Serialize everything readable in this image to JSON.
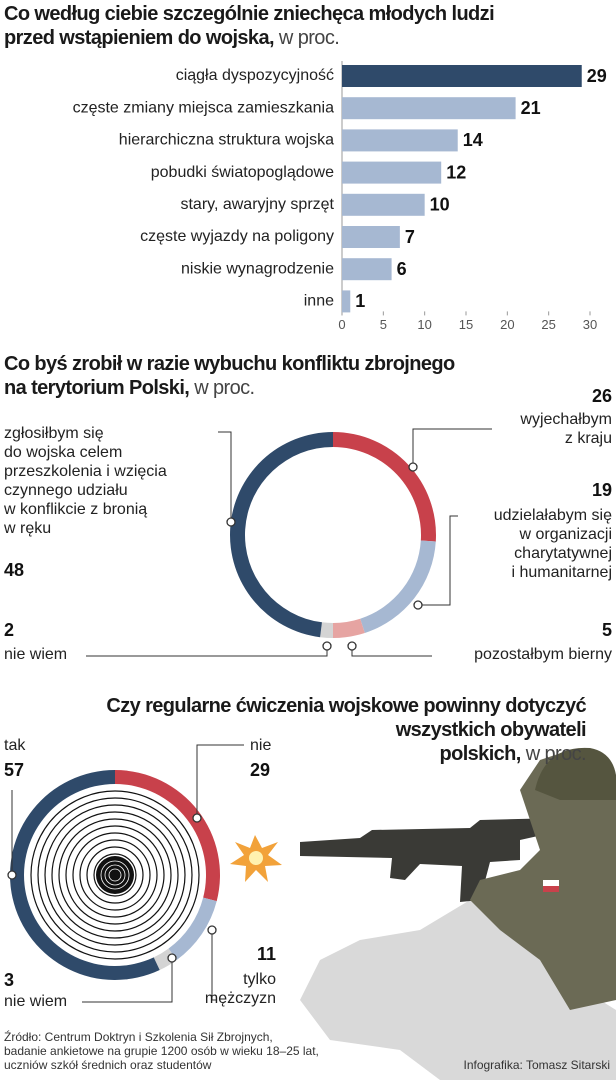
{
  "chart_data": [
    {
      "type": "bar",
      "orientation": "horizontal",
      "title": "Co według ciebie szczególnie zniechęca młodych ludzi\nprzed wstąpieniem do wojska,",
      "unit": "w proc.",
      "categories": [
        "ciągła dyspozycyjność",
        "częste zmiany miejsca zamieszkania",
        "hierarchiczna struktura wojska",
        "pobudki światopoglądowe",
        "stary, awaryjny sprzęt",
        "częste wyjazdy na poligony",
        "niskie wynagrodzenie",
        "inne"
      ],
      "values": [
        29,
        21,
        14,
        12,
        10,
        7,
        6,
        1
      ],
      "colors": [
        "#2f4a6a",
        "#a6b8d2",
        "#a6b8d2",
        "#a6b8d2",
        "#a6b8d2",
        "#a6b8d2",
        "#a6b8d2",
        "#a6b8d2"
      ],
      "xlim": [
        0,
        30
      ],
      "xticks": [
        0,
        5,
        10,
        15,
        20,
        25,
        30
      ]
    },
    {
      "type": "donut",
      "title": "Co byś zrobił w razie wybuchu konfliktu zbrojnego\nna terytorium Polski,",
      "unit": "w proc.",
      "categories": [
        "wyjechałbym\nz kraju",
        "udzielałabym się\nw organizacji\ncharytatywnej\ni humanitarnej",
        "pozostałbym bierny",
        "nie wiem",
        "zgłosiłbym się\ndo wojska celem\nprzeszkolenia i wzięcia\nczynnego udziału\nw konflikcie z bronią\nw ręku"
      ],
      "values": [
        26,
        19,
        5,
        2,
        48
      ],
      "colors": [
        "#c8414b",
        "#a6b8d2",
        "#e6a4a2",
        "#d4d4d4",
        "#2f4a6a"
      ]
    },
    {
      "type": "donut",
      "title": "Czy regularne ćwiczenia wojskowe powinny dotyczyć\nwszystkich obywateli\npolskich,",
      "unit": "w proc.",
      "categories": [
        "nie",
        "tylko\nmężczyzn",
        "nie wiem",
        "tak"
      ],
      "values": [
        29,
        11,
        3,
        57
      ],
      "colors": [
        "#c8414b",
        "#a6b8d2",
        "#d4d4d4",
        "#2f4a6a"
      ]
    }
  ],
  "source": "Źródło: Centrum Doktryn i Szkolenia Sił Zbrojnych,\nbadanie ankietowe na grupie 1200 osób w wieku 18–25 lat,\nuczniów szkół średnich oraz studentów",
  "credit": "Infografika: Tomasz Sitarski"
}
